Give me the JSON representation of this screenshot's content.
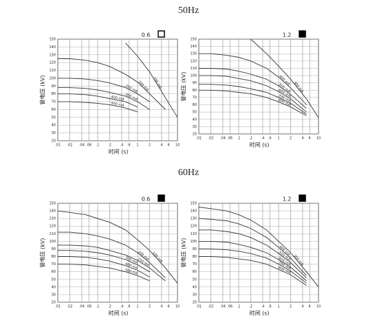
{
  "sections": [
    "50Hz",
    "60Hz"
  ],
  "chart_data": [
    {
      "type": "line",
      "title": "0.6",
      "x_label": "时间 (s)",
      "y_label": "管电压 (kV)",
      "log_x": true,
      "grid": true,
      "marker_filled": false,
      "xlim": [
        0.01,
        10
      ],
      "ylim": [
        20,
        150
      ],
      "xticks": [
        {
          "value": 0.01,
          "label": ".01"
        },
        {
          "value": 0.02,
          "label": ".02"
        },
        {
          "value": 0.04,
          "label": ".04"
        },
        {
          "value": 0.06,
          "label": ".06"
        },
        {
          "value": 0.1,
          "label": ".1"
        },
        {
          "value": 0.2,
          "label": ".2"
        },
        {
          "value": 0.4,
          "label": ".4"
        },
        {
          "value": 0.6,
          "label": ".6"
        },
        1,
        2,
        4,
        6,
        10
      ],
      "yticks": [
        20,
        30,
        40,
        50,
        60,
        70,
        80,
        90,
        100,
        110,
        120,
        130,
        140,
        150
      ],
      "x": [
        0.01,
        0.02,
        0.05,
        0.1,
        0.2,
        0.5,
        1,
        2,
        5,
        10
      ],
      "series": [
        {
          "name": "100 mA",
          "color": "#333333",
          "values": [
            null,
            null,
            null,
            null,
            null,
            145,
            128,
            108,
            75,
            50
          ]
        },
        {
          "name": "200 mA",
          "color": "#333333",
          "values": [
            125,
            125,
            123,
            120,
            115,
            105,
            95,
            80,
            60,
            null
          ]
        },
        {
          "name": "250 mA",
          "color": "#333333",
          "values": [
            100,
            100,
            99,
            97,
            94,
            88,
            80,
            70,
            null,
            null
          ]
        },
        {
          "name": "300 mA",
          "color": "#333333",
          "values": [
            88,
            88,
            87,
            85,
            82,
            77,
            70,
            60,
            null,
            null
          ]
        },
        {
          "name": "400 mA",
          "color": "#333333",
          "values": [
            80,
            80,
            79,
            77,
            74,
            70,
            63,
            null,
            null,
            null
          ]
        },
        {
          "name": "500 mA",
          "color": "#333333",
          "values": [
            70,
            70,
            69,
            68,
            66,
            62,
            57,
            null,
            null,
            null
          ]
        }
      ]
    },
    {
      "type": "line",
      "title": "1.2",
      "x_label": "时间 (s)",
      "y_label": "管电压 (kV)",
      "log_x": true,
      "grid": true,
      "marker_filled": true,
      "xlim": [
        0.01,
        10
      ],
      "ylim": [
        20,
        150
      ],
      "xticks": [
        {
          "value": 0.01,
          "label": ".01"
        },
        {
          "value": 0.02,
          "label": ".02"
        },
        {
          "value": 0.04,
          "label": ".04"
        },
        {
          "value": 0.06,
          "label": ".06"
        },
        {
          "value": 0.1,
          "label": ".1"
        },
        {
          "value": 0.2,
          "label": ".2"
        },
        {
          "value": 0.4,
          "label": ".4"
        },
        {
          "value": 0.6,
          "label": ".6"
        },
        1,
        2,
        4,
        6,
        10
      ],
      "yticks": [
        20,
        30,
        40,
        50,
        60,
        70,
        80,
        90,
        100,
        110,
        120,
        130,
        140,
        150
      ],
      "x": [
        0.01,
        0.02,
        0.05,
        0.1,
        0.2,
        0.5,
        1,
        2,
        5,
        10
      ],
      "series": [
        {
          "name": "300 mA",
          "color": "#333333",
          "values": [
            null,
            null,
            null,
            null,
            150,
            130,
            113,
            95,
            68,
            42
          ]
        },
        {
          "name": "400 mA",
          "color": "#333333",
          "values": [
            130,
            130,
            128,
            125,
            120,
            110,
            98,
            83,
            60,
            null
          ]
        },
        {
          "name": "500 mA",
          "color": "#333333",
          "values": [
            110,
            110,
            109,
            106,
            102,
            95,
            86,
            74,
            55,
            null
          ]
        },
        {
          "name": "600 mA",
          "color": "#333333",
          "values": [
            100,
            100,
            99,
            96,
            93,
            86,
            78,
            68,
            50,
            null
          ]
        },
        {
          "name": "700 mA",
          "color": "#333333",
          "values": [
            88,
            88,
            87,
            85,
            82,
            77,
            70,
            62,
            47,
            null
          ]
        },
        {
          "name": "800 mA",
          "color": "#333333",
          "values": [
            80,
            80,
            79,
            77,
            75,
            70,
            64,
            57,
            45,
            null
          ]
        }
      ]
    },
    {
      "type": "line",
      "title": "0.6",
      "x_label": "时间 (s)",
      "y_label": "管电压 (kV)",
      "log_x": true,
      "grid": true,
      "marker_filled": true,
      "xlim": [
        0.01,
        10
      ],
      "ylim": [
        20,
        150
      ],
      "xticks": [
        {
          "value": 0.01,
          "label": ".01"
        },
        {
          "value": 0.02,
          "label": ".02"
        },
        {
          "value": 0.04,
          "label": ".04"
        },
        {
          "value": 0.06,
          "label": ".06"
        },
        {
          "value": 0.1,
          "label": ".1"
        },
        {
          "value": 0.2,
          "label": ".2"
        },
        {
          "value": 0.4,
          "label": ".4"
        },
        {
          "value": 0.6,
          "label": ".6"
        },
        1,
        2,
        4,
        6,
        10
      ],
      "yticks": [
        20,
        30,
        40,
        50,
        60,
        70,
        80,
        90,
        100,
        110,
        120,
        130,
        140,
        150
      ],
      "x": [
        0.01,
        0.02,
        0.05,
        0.1,
        0.2,
        0.5,
        1,
        2,
        5,
        10
      ],
      "series": [
        {
          "name": "100 mA",
          "color": "#333333",
          "values": [
            140,
            138,
            135,
            130,
            125,
            115,
            102,
            88,
            65,
            45
          ]
        },
        {
          "name": "200 mA",
          "color": "#333333",
          "values": [
            112,
            112,
            110,
            107,
            103,
            95,
            85,
            72,
            52,
            null
          ]
        },
        {
          "name": "250 mA",
          "color": "#333333",
          "values": [
            95,
            95,
            94,
            92,
            88,
            82,
            75,
            65,
            48,
            null
          ]
        },
        {
          "name": "300 mA",
          "color": "#333333",
          "values": [
            88,
            88,
            87,
            85,
            82,
            76,
            69,
            60,
            null,
            null
          ]
        },
        {
          "name": "400 mA",
          "color": "#333333",
          "values": [
            80,
            80,
            79,
            77,
            74,
            68,
            62,
            53,
            null,
            null
          ]
        },
        {
          "name": "500 mA",
          "color": "#333333",
          "values": [
            70,
            70,
            69,
            67,
            65,
            60,
            55,
            48,
            null,
            null
          ]
        }
      ]
    },
    {
      "type": "line",
      "title": "1.2",
      "x_label": "时间 (s)",
      "y_label": "管电压 (kV)",
      "log_x": true,
      "grid": true,
      "marker_filled": true,
      "xlim": [
        0.01,
        10
      ],
      "ylim": [
        20,
        150
      ],
      "xticks": [
        {
          "value": 0.01,
          "label": ".01"
        },
        {
          "value": 0.02,
          "label": ".02"
        },
        {
          "value": 0.04,
          "label": ".04"
        },
        {
          "value": 0.06,
          "label": ".06"
        },
        {
          "value": 0.1,
          "label": ".1"
        },
        {
          "value": 0.2,
          "label": ".2"
        },
        {
          "value": 0.4,
          "label": ".4"
        },
        {
          "value": 0.6,
          "label": ".6"
        },
        1,
        2,
        4,
        6,
        10
      ],
      "yticks": [
        20,
        30,
        40,
        50,
        60,
        70,
        80,
        90,
        100,
        110,
        120,
        130,
        140,
        150
      ],
      "x": [
        0.01,
        0.02,
        0.05,
        0.1,
        0.2,
        0.5,
        1,
        2,
        5,
        10
      ],
      "series": [
        {
          "name": "300 mA",
          "color": "#333333",
          "values": [
            145,
            143,
            140,
            135,
            128,
            115,
            100,
            85,
            60,
            40
          ]
        },
        {
          "name": "400 mA",
          "color": "#333333",
          "values": [
            130,
            129,
            127,
            123,
            117,
            105,
            92,
            78,
            55,
            null
          ]
        },
        {
          "name": "500 mA",
          "color": "#333333",
          "values": [
            115,
            115,
            113,
            110,
            105,
            95,
            84,
            72,
            52,
            null
          ]
        },
        {
          "name": "600 mA",
          "color": "#333333",
          "values": [
            100,
            100,
            99,
            96,
            92,
            85,
            76,
            66,
            48,
            null
          ]
        },
        {
          "name": "700 mA",
          "color": "#333333",
          "values": [
            90,
            90,
            89,
            87,
            84,
            78,
            70,
            61,
            45,
            null
          ]
        },
        {
          "name": "800 mA",
          "color": "#333333",
          "values": [
            80,
            80,
            79,
            77,
            75,
            70,
            63,
            56,
            42,
            null
          ]
        }
      ]
    }
  ]
}
